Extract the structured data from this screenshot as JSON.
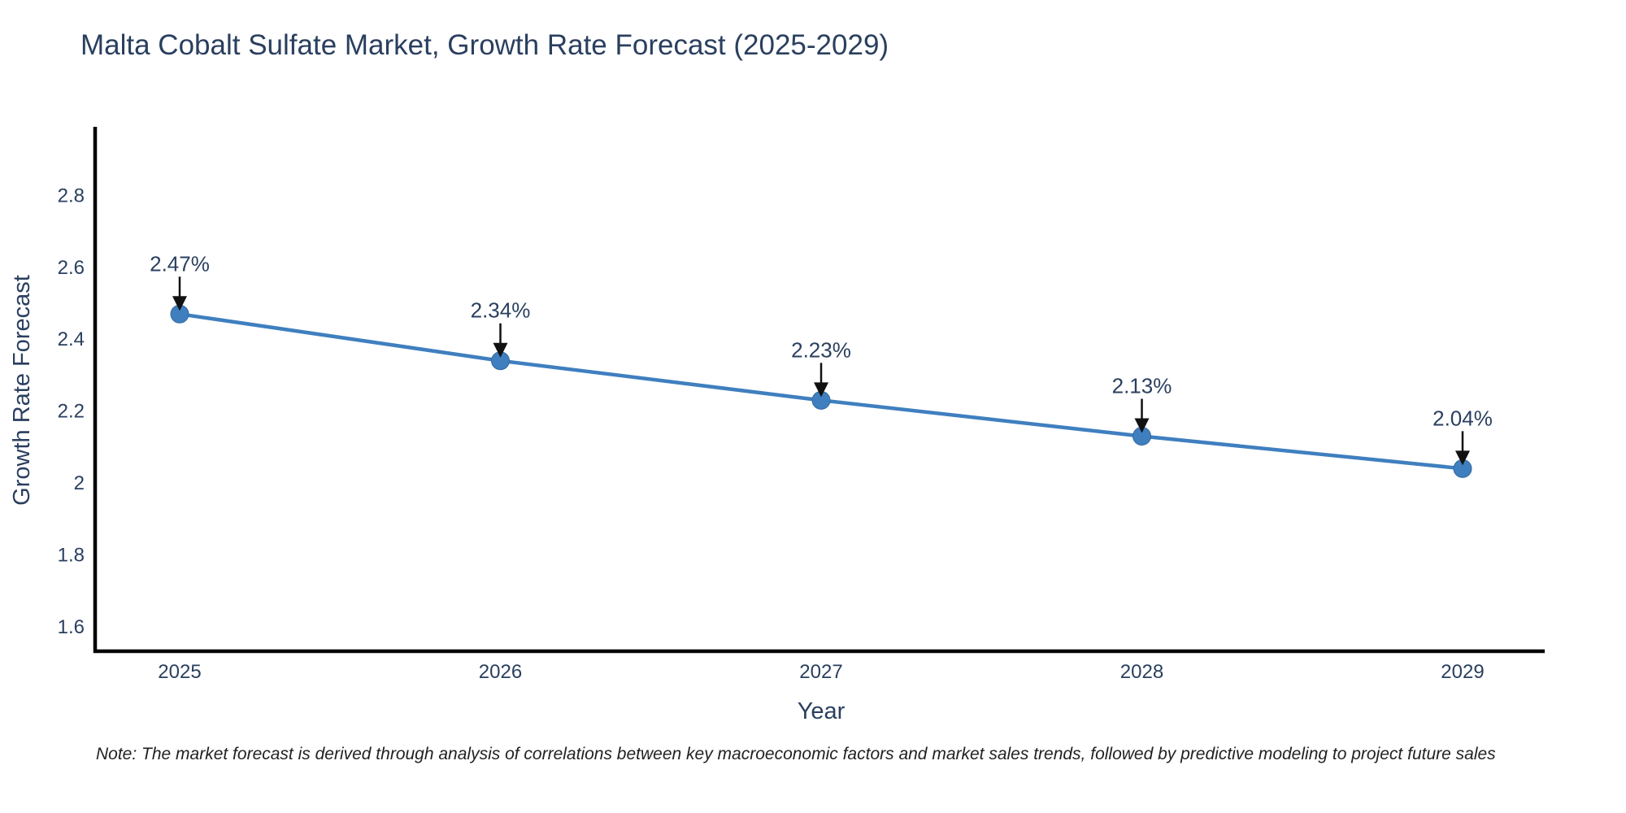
{
  "title": "Malta Cobalt Sulfate Market, Growth Rate Forecast (2025-2029)",
  "note": "Note: The market forecast is derived through analysis of correlations between key macroeconomic factors and market sales trends, followed by predictive modeling to project future sales",
  "chart_data": {
    "type": "line",
    "title": "Malta Cobalt Sulfate Market, Growth Rate Forecast (2025-2029)",
    "xlabel": "Year",
    "ylabel": "Growth Rate Forecast",
    "x": [
      2025,
      2026,
      2027,
      2028,
      2029
    ],
    "xtick_labels": [
      "2025",
      "2026",
      "2027",
      "2028",
      "2029"
    ],
    "series": [
      {
        "name": "Growth Rate Forecast",
        "values": [
          2.47,
          2.34,
          2.23,
          2.13,
          2.04
        ]
      }
    ],
    "point_labels": [
      "2.47%",
      "2.34%",
      "2.23%",
      "2.13%",
      "2.04%"
    ],
    "yticks": [
      1.6,
      1.8,
      2,
      2.2,
      2.4,
      2.6,
      2.8
    ],
    "ytick_labels": [
      "1.6",
      "1.8",
      "2",
      "2.2",
      "2.4",
      "2.6",
      "2.8"
    ],
    "ylim": [
      1.53,
      2.99
    ],
    "grid": false,
    "legend": "none",
    "colors": {
      "line": "#3f7fbf",
      "marker": "#3f7fbf",
      "marker_edge": "#35689c",
      "arrow": "#111111",
      "axis": "#000000",
      "text": "#2a3f5f",
      "note_text": "#222222"
    }
  }
}
